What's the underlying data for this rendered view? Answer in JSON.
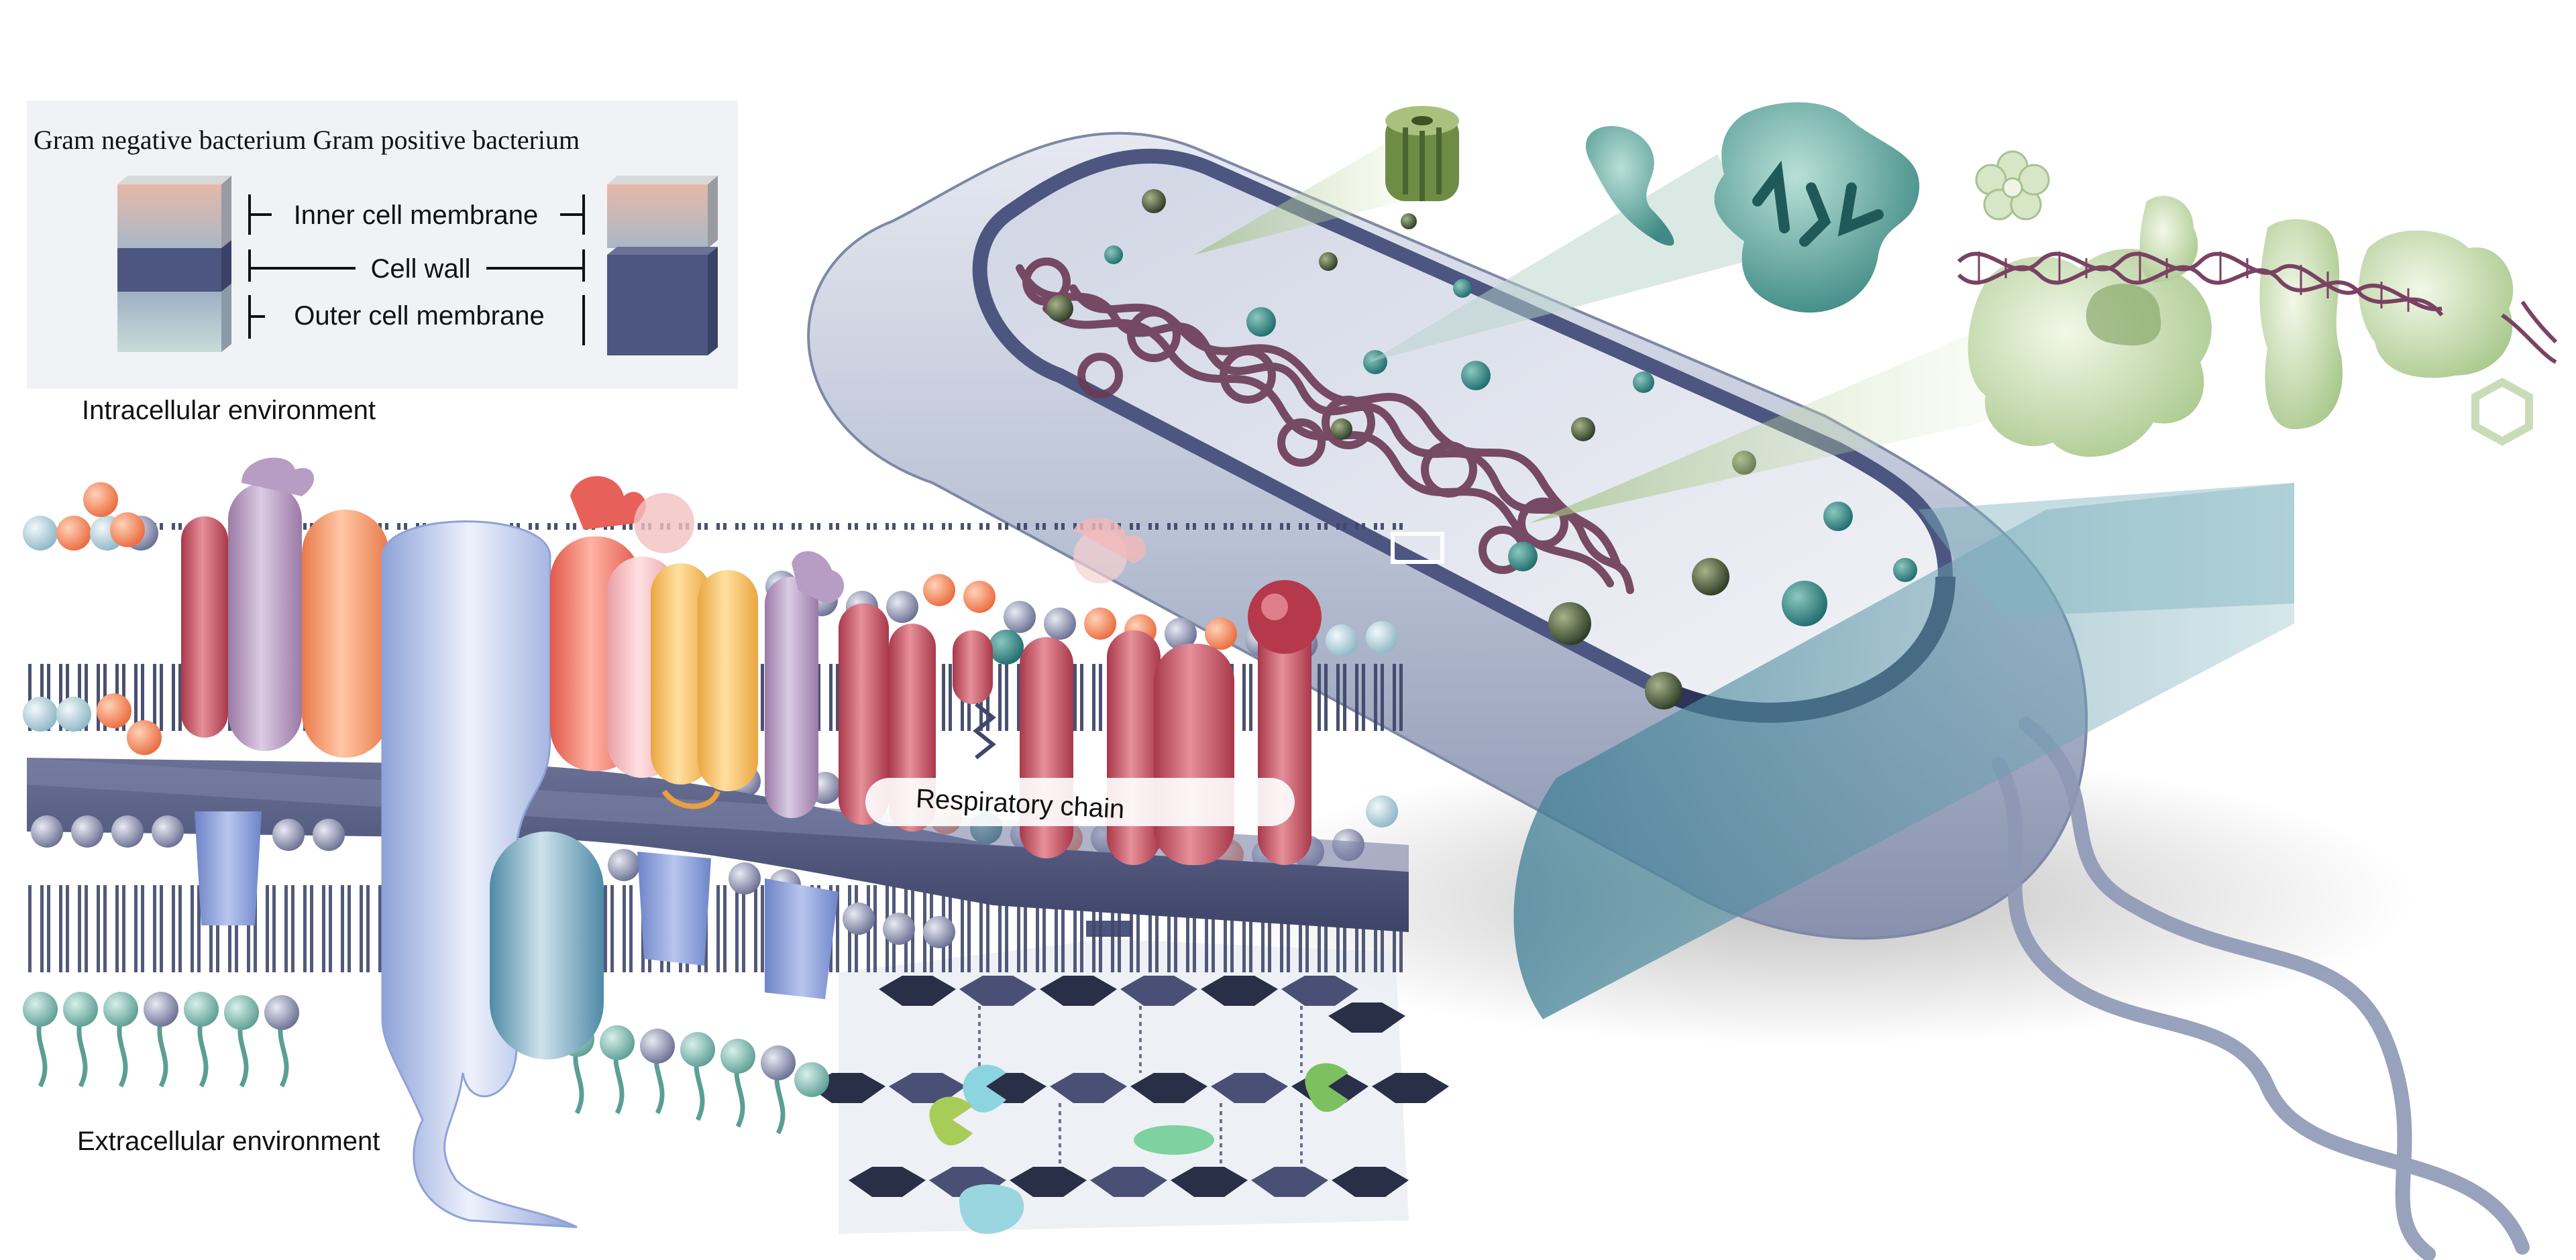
{
  "legend": {
    "title": "Gram negative bacterium Gram positive bacterium",
    "inner_membrane": "Inner cell membrane",
    "cell_wall": "Cell wall",
    "outer_membrane": "Outer cell membrane"
  },
  "environment": {
    "intracellular": "Intracellular environment",
    "extracellular": "Extracellular environment"
  },
  "membrane": {
    "respiratory_chain": "Respiratory chain"
  },
  "colors": {
    "cell_body": "#c9cfdd",
    "wall_dark": "#4c5680",
    "teal": "#2f7d8c",
    "dna": "#6b3a55",
    "green_light": "#c6dba8",
    "hexagon": "#2a2f48",
    "protein_red": "#c25060",
    "protein_blue": "#b8c6ea"
  }
}
